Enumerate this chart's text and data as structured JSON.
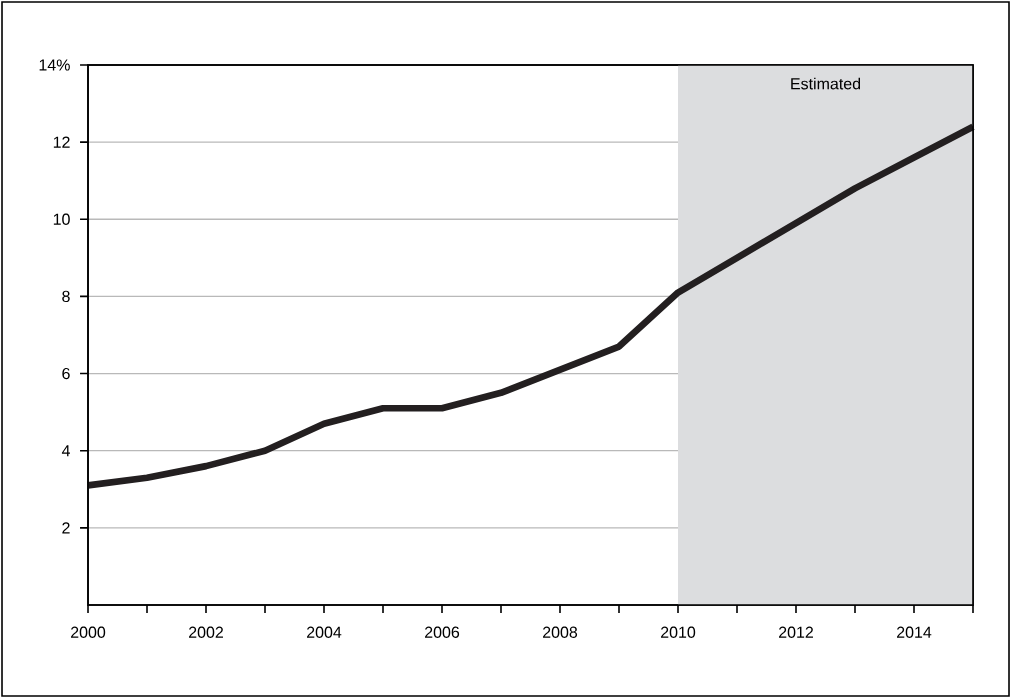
{
  "chart_data": {
    "type": "line",
    "x": [
      2000,
      2001,
      2002,
      2003,
      2004,
      2005,
      2006,
      2007,
      2008,
      2009,
      2010,
      2011,
      2012,
      2013,
      2014,
      2015
    ],
    "series": [
      {
        "color": "#231f20",
        "values": [
          3.1,
          3.3,
          3.6,
          4.0,
          4.7,
          5.1,
          5.1,
          5.5,
          6.1,
          6.7,
          8.1,
          9.0,
          9.9,
          10.8,
          11.6,
          12.4
        ]
      }
    ],
    "xlim": [
      2000,
      2015
    ],
    "xticks": [
      2000,
      {
        "value": 2001,
        "label": null
      },
      2002,
      {
        "value": 2003,
        "label": null
      },
      2004,
      {
        "value": 2005,
        "label": null
      },
      2006,
      {
        "value": 2007,
        "label": null
      },
      2008,
      {
        "value": 2009,
        "label": null
      },
      2010,
      {
        "value": 2011,
        "label": null
      },
      2012,
      {
        "value": 2013,
        "label": null
      },
      2014,
      {
        "value": 2015,
        "label": null
      }
    ],
    "ylim": [
      0,
      14
    ],
    "yticks": [
      2,
      4,
      6,
      8,
      10,
      12,
      {
        "value": 14,
        "label": "14%"
      }
    ],
    "bands": [
      {
        "axis": "x",
        "from": 2010,
        "to": 2015,
        "label": "Estimated",
        "color": "#dcdddf"
      }
    ],
    "grid": "y",
    "line_style": "solid",
    "marker": "none",
    "legend": false
  }
}
